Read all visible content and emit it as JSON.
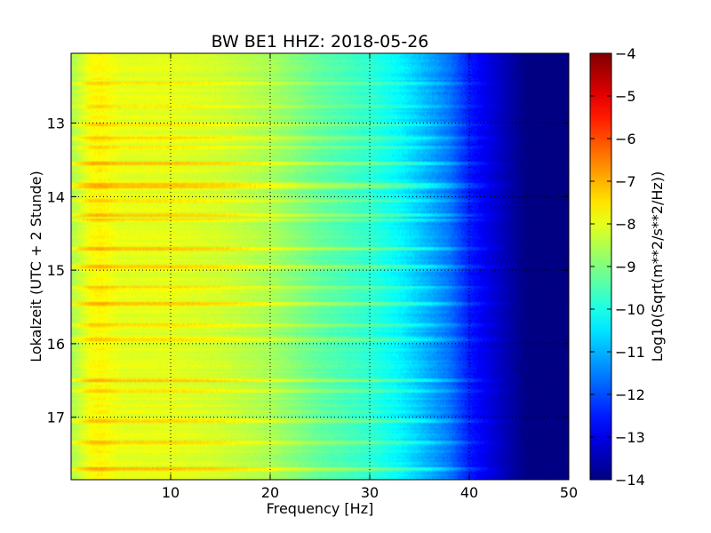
{
  "chart_data": {
    "type": "heatmap",
    "title": "BW BE1 HHZ: 2018-05-26",
    "xlabel": "Frequency [Hz]",
    "ylabel": "Lokalzeit (UTC + 2 Stunde)",
    "colorbar_label": "Log10(Sqrt(m**2/s**2/Hz))",
    "colormap": "jet",
    "xlim": [
      0,
      50
    ],
    "ylim": [
      17.85,
      12.05
    ],
    "clim": [
      -14,
      -4
    ],
    "x_ticks": [
      10,
      20,
      30,
      40,
      50
    ],
    "x_tick_labels": [
      "10",
      "20",
      "30",
      "40",
      "50"
    ],
    "y_ticks": [
      13,
      14,
      15,
      16,
      17
    ],
    "y_tick_labels": [
      "13",
      "14",
      "15",
      "16",
      "17"
    ],
    "colorbar_ticks": [
      -4,
      -5,
      -6,
      -7,
      -8,
      -9,
      -10,
      -11,
      -12,
      -13,
      -14
    ],
    "colorbar_tick_labels": [
      "−4",
      "−5",
      "−6",
      "−7",
      "−8",
      "−9",
      "−10",
      "−11",
      "−12",
      "−13",
      "−14"
    ],
    "grid": true,
    "spectrum_profile": {
      "frequency_hz": [
        0,
        1,
        2,
        3,
        5,
        10,
        15,
        20,
        25,
        30,
        33,
        35,
        38,
        40,
        43,
        45,
        46,
        50
      ],
      "level": [
        -8.6,
        -8.2,
        -7.8,
        -7.7,
        -8.0,
        -8.0,
        -8.2,
        -8.6,
        -9.3,
        -9.8,
        -10.3,
        -10.8,
        -11.6,
        -12.5,
        -13.3,
        -13.8,
        -14.0,
        -14.0
      ]
    },
    "notable_time_rows": [
      {
        "time": 12.45,
        "offset": 0.5
      },
      {
        "time": 12.78,
        "offset": 0.4
      },
      {
        "time": 13.02,
        "offset": 0.45
      },
      {
        "time": 13.22,
        "offset": 0.5
      },
      {
        "time": 13.33,
        "offset": 0.4
      },
      {
        "time": 13.55,
        "offset": 0.8
      },
      {
        "time": 13.85,
        "offset": 0.7
      },
      {
        "time": 14.05,
        "offset": 0.6
      },
      {
        "time": 14.25,
        "offset": 0.8
      },
      {
        "time": 14.33,
        "offset": 0.5
      },
      {
        "time": 14.7,
        "offset": 0.8
      },
      {
        "time": 14.95,
        "offset": 0.6
      },
      {
        "time": 15.25,
        "offset": 0.5
      },
      {
        "time": 15.45,
        "offset": 0.8
      },
      {
        "time": 15.75,
        "offset": 0.4
      },
      {
        "time": 15.95,
        "offset": 0.5
      },
      {
        "time": 16.5,
        "offset": 0.7
      },
      {
        "time": 16.65,
        "offset": 0.6
      },
      {
        "time": 17.05,
        "offset": 0.5
      },
      {
        "time": 17.35,
        "offset": 0.5
      },
      {
        "time": 17.7,
        "offset": 0.8
      }
    ]
  }
}
